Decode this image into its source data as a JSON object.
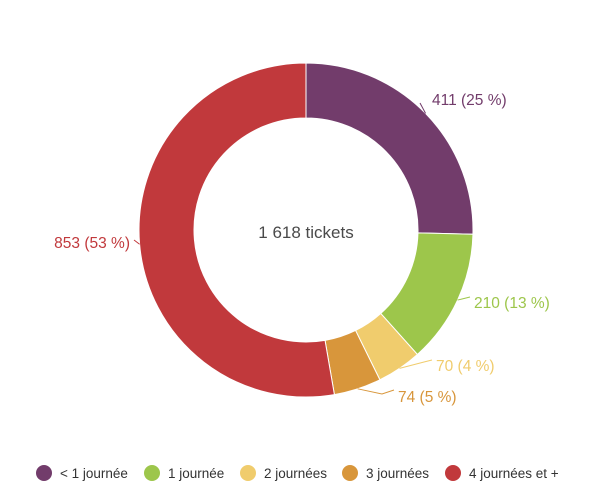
{
  "chart_data": {
    "type": "pie",
    "subtype": "donut",
    "center_label": "1 618 tickets",
    "slices": [
      {
        "name": "< 1 journée",
        "value": 411,
        "label": "411 (25 %)",
        "color": "#723c6b"
      },
      {
        "name": "1 journée",
        "value": 210,
        "label": "210 (13 %)",
        "color": "#9dc64b"
      },
      {
        "name": "2 journées",
        "value": 70,
        "label": "70 (4 %)",
        "color": "#f0cc6d"
      },
      {
        "name": "3 journées",
        "value": 74,
        "label": "74 (5 %)",
        "color": "#d8963b"
      },
      {
        "name": "4 journées et +",
        "value": 853,
        "label": "853 (53 %)",
        "color": "#c1393c"
      }
    ],
    "legend_position": "bottom"
  }
}
